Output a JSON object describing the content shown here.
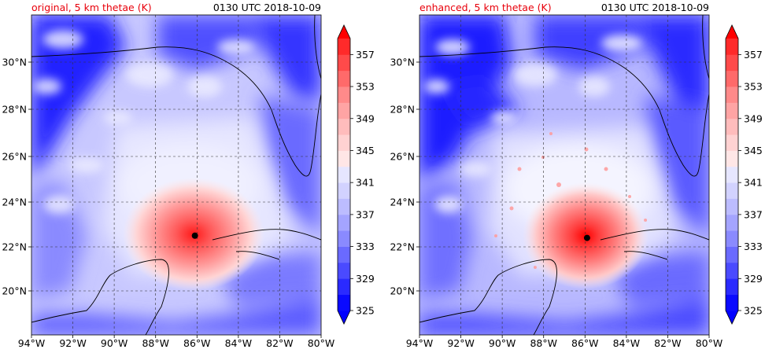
{
  "panels": [
    {
      "title_left": "original, 5 km thetae (K)",
      "title_right": "0130 UTC 2018-10-09",
      "storm_center": {
        "lon": -86.1,
        "lat": 22.5
      }
    },
    {
      "title_left": "enhanced, 5 km thetae (K)",
      "title_right": "0130 UTC 2018-10-09",
      "storm_center": {
        "lon": -85.9,
        "lat": 22.4
      }
    }
  ],
  "x_ticks": [
    "94°W",
    "92°W",
    "90°W",
    "88°W",
    "86°W",
    "84°W",
    "82°W",
    "80°W"
  ],
  "y_ticks": [
    "20°N",
    "22°N",
    "24°N",
    "26°N",
    "28°N",
    "30°N"
  ],
  "colorbar": {
    "labels": [
      "325",
      "329",
      "333",
      "337",
      "341",
      "345",
      "349",
      "353",
      "357"
    ],
    "level_min": 325,
    "level_max": 359,
    "level_step": 2,
    "colors": [
      "#0a0aff",
      "#2a2aff",
      "#4a4aff",
      "#6a6aff",
      "#8a8aff",
      "#a4a4ff",
      "#bcbcff",
      "#d2d2ff",
      "#e6e6ff",
      "#ffe6e6",
      "#ffd2d2",
      "#ffbcbc",
      "#ffa4a4",
      "#ff8a8a",
      "#ff6a6a",
      "#ff4a4a",
      "#ff2a2a"
    ],
    "under_color": "#0000ff",
    "over_color": "#ff0000"
  },
  "colors": {
    "title_left": "#e8000b",
    "ocean_base": "#dcdcff",
    "land_base": "#3c3cff",
    "storm": "#ff6060"
  }
}
